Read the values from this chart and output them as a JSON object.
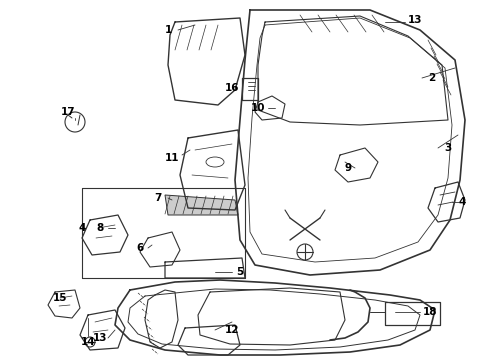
{
  "bg_color": "#ffffff",
  "line_color": "#333333",
  "label_color": "#000000",
  "figsize": [
    4.9,
    3.6
  ],
  "dpi": 100
}
